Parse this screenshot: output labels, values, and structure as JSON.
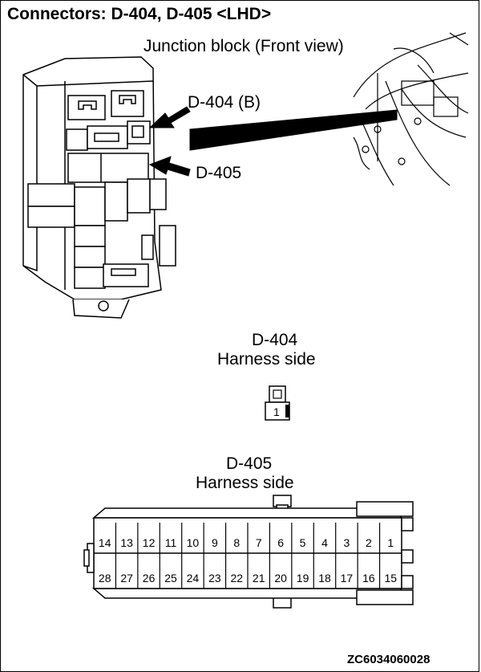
{
  "title": "Connectors: D-404, D-405 <LHD>",
  "junction_block_label": "Junction block (Front view)",
  "d404_callout": "D-404 (B)",
  "d405_callout": "D-405",
  "d404": {
    "name": "D-404",
    "side": "Harness side",
    "pins": [
      "1"
    ]
  },
  "d405": {
    "name": "D-405",
    "side": "Harness side",
    "top_row": [
      "14",
      "13",
      "12",
      "11",
      "10",
      "9",
      "8",
      "7",
      "6",
      "5",
      "4",
      "3",
      "2",
      "1"
    ],
    "bottom_row": [
      "28",
      "27",
      "26",
      "25",
      "24",
      "23",
      "22",
      "21",
      "20",
      "19",
      "18",
      "17",
      "16",
      "15"
    ]
  },
  "figure_code": "ZC6034060028"
}
